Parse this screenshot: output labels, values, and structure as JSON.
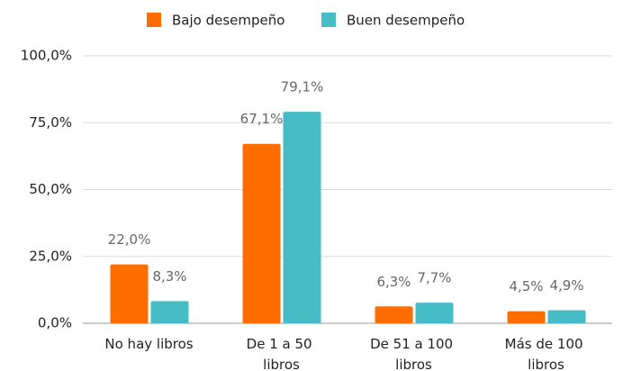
{
  "chart_data": {
    "type": "bar",
    "categories": [
      "No hay libros",
      "De 1 a 50 libros",
      "De 51 a 100 libros",
      "Más de 100 libros"
    ],
    "series": [
      {
        "name": "Bajo desempeño",
        "color": "#ff6d00",
        "values": [
          22.0,
          67.1,
          6.3,
          4.5
        ],
        "value_labels": [
          "22,0%",
          "67,1%",
          "6,3%",
          "4,5%"
        ]
      },
      {
        "name": "Buen desempeño",
        "color": "#46bdc6",
        "values": [
          8.3,
          79.1,
          7.7,
          4.9
        ],
        "value_labels": [
          "8,3%",
          "79,1%",
          "7,7%",
          "4,9%"
        ]
      }
    ],
    "ylim": [
      0,
      100
    ],
    "yticks": [
      {
        "value": 0,
        "label": "0,0%"
      },
      {
        "value": 25,
        "label": "25,0%"
      },
      {
        "value": 50,
        "label": "50,0%"
      },
      {
        "value": 75,
        "label": "75,0%"
      },
      {
        "value": 100,
        "label": "100,0%"
      }
    ],
    "grid": true,
    "legend": "top"
  }
}
